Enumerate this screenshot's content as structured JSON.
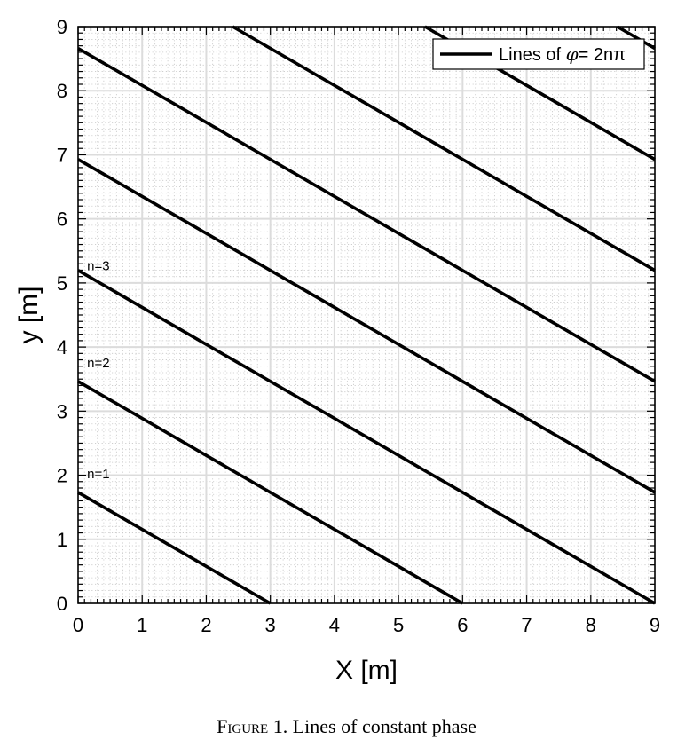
{
  "caption": {
    "label": "Figure 1.",
    "text": "Lines of constant phase"
  },
  "chart_data": {
    "type": "line",
    "xlabel": "X [m]",
    "ylabel": "y [m]",
    "xlim": [
      0,
      9
    ],
    "ylim": [
      0,
      9
    ],
    "xticks": [
      "0",
      "1",
      "2",
      "3",
      "4",
      "5",
      "6",
      "7",
      "8",
      "9"
    ],
    "yticks": [
      "0",
      "1",
      "2",
      "3",
      "4",
      "5",
      "6",
      "7",
      "8",
      "9"
    ],
    "grid": true,
    "minor_grid": true,
    "legend": {
      "position": "top-right",
      "entries": [
        {
          "text_main": "Lines of ",
          "symbol": "φ",
          "text_rest": "= 2nπ"
        }
      ]
    },
    "series": [
      {
        "points": [
          [
            0,
            1.732
          ],
          [
            3,
            0
          ]
        ]
      },
      {
        "points": [
          [
            0,
            3.464
          ],
          [
            6,
            0
          ]
        ]
      },
      {
        "points": [
          [
            0,
            5.196
          ],
          [
            9,
            0
          ]
        ]
      },
      {
        "points": [
          [
            0,
            6.928
          ],
          [
            9,
            1.732
          ]
        ]
      },
      {
        "points": [
          [
            0,
            8.66
          ],
          [
            9,
            3.464
          ]
        ]
      },
      {
        "points": [
          [
            2.412,
            9
          ],
          [
            9,
            5.196
          ]
        ]
      },
      {
        "points": [
          [
            5.412,
            9
          ],
          [
            9,
            6.928
          ]
        ]
      },
      {
        "points": [
          [
            8.412,
            9
          ],
          [
            9,
            8.66
          ]
        ]
      }
    ],
    "annotations": [
      {
        "text": "n=1",
        "x": 0.4,
        "y": 1.95
      },
      {
        "text": "n=2",
        "x": 0.4,
        "y": 3.68
      },
      {
        "text": "n=3",
        "x": 0.4,
        "y": 5.2
      }
    ],
    "colors": {
      "line": "#000000",
      "major_grid": "#dcdcdc",
      "minor_grid": "#c8c8c8"
    }
  }
}
